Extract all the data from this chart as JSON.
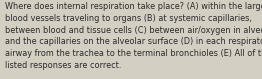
{
  "lines": [
    "Where does internal respiration take place? (A) within the larger",
    "blood vessels traveling to organs (B) at systemic capillaries,",
    "between blood and tissue cells (C) between air/oxygen in alveoli",
    "and the capillaries on the alveolar surface (D) in each respiratory",
    "airway from the trachea to the terminal bronchioles (E) All of the",
    "listed responses are correct."
  ],
  "background_color": "#d4cfc3",
  "text_color": "#2b2b2b",
  "font_size": 5.85,
  "fig_width": 2.62,
  "fig_height": 0.79,
  "dpi": 100
}
